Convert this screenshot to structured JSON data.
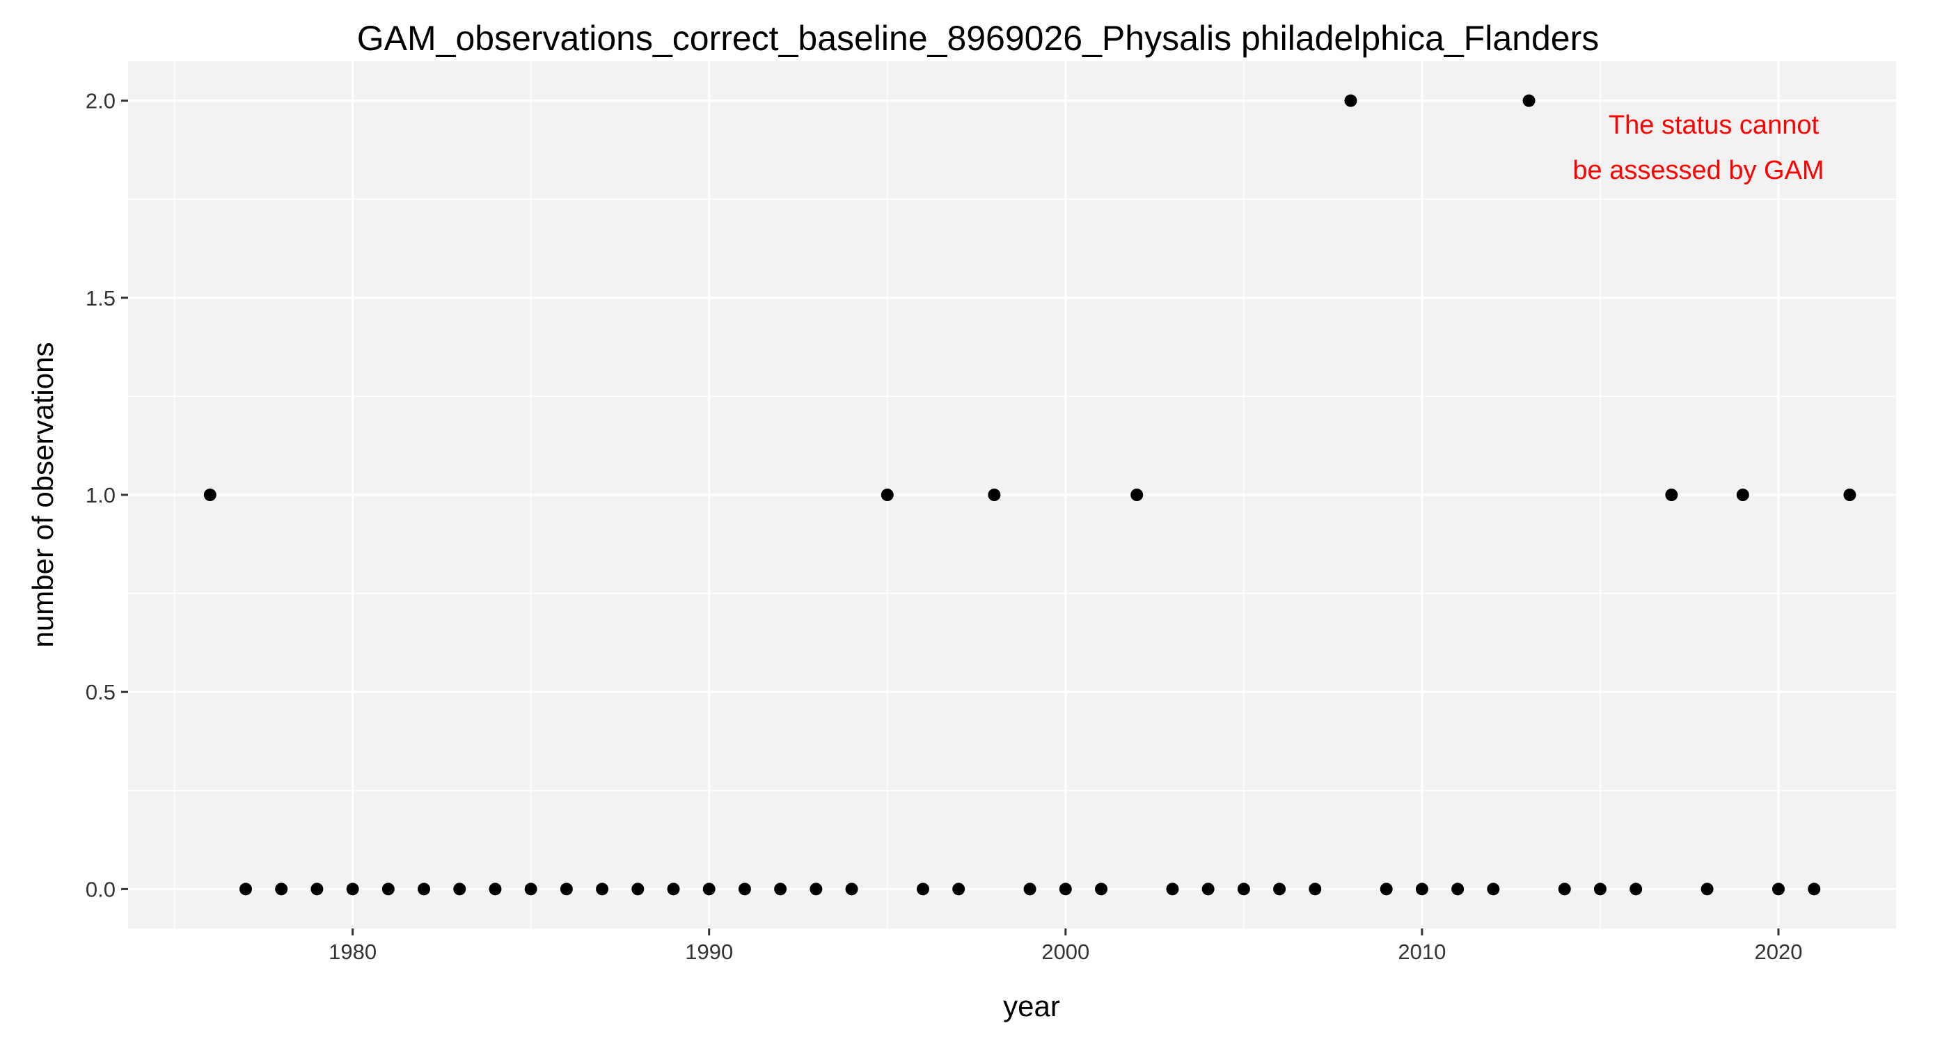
{
  "chart_data": {
    "type": "scatter",
    "title": "GAM_observations_correct_baseline_8969026_Physalis philadelphica_Flanders",
    "xlabel": "year",
    "ylabel": "number of observations",
    "xlim": [
      1973.7,
      2023.3
    ],
    "ylim": [
      -0.1,
      2.1
    ],
    "x_ticks": [
      1980,
      1990,
      2000,
      2010,
      2020
    ],
    "x_tick_labels": [
      "1980",
      "1990",
      "2000",
      "2010",
      "2020"
    ],
    "x_minor_ticks": [
      1975,
      1985,
      1995,
      2005,
      2015
    ],
    "y_ticks": [
      0,
      0.5,
      1,
      1.5,
      2
    ],
    "y_tick_labels": [
      "0.0",
      "0.5",
      "1.0",
      "1.5",
      "2.0"
    ],
    "y_minor_ticks": [
      0.25,
      0.75,
      1.25,
      1.75
    ],
    "grid": true,
    "panel_color": "#f2f2f2",
    "point_color": "#000000",
    "x": [
      1976,
      1977,
      1978,
      1979,
      1980,
      1981,
      1982,
      1983,
      1984,
      1985,
      1986,
      1987,
      1988,
      1989,
      1990,
      1991,
      1992,
      1993,
      1994,
      1995,
      1996,
      1997,
      1998,
      1999,
      2000,
      2001,
      2002,
      2003,
      2004,
      2005,
      2006,
      2007,
      2008,
      2009,
      2010,
      2011,
      2012,
      2013,
      2014,
      2015,
      2016,
      2017,
      2018,
      2019,
      2020,
      2021,
      2022
    ],
    "y": [
      1,
      0,
      0,
      0,
      0,
      0,
      0,
      0,
      0,
      0,
      0,
      0,
      0,
      0,
      0,
      0,
      0,
      0,
      0,
      1,
      0,
      0,
      1,
      0,
      0,
      0,
      1,
      0,
      0,
      0,
      0,
      0,
      2,
      0,
      0,
      0,
      0,
      2,
      0,
      0,
      0,
      1,
      0,
      1,
      0,
      0,
      1
    ],
    "annotation": {
      "lines": [
        "The status cannot",
        "be assessed by GAM"
      ],
      "color": "#ff0000",
      "placement": "top-right"
    }
  }
}
